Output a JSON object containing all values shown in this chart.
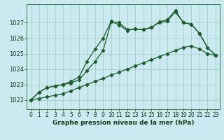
{
  "title": "Graphe pression niveau de la mer (hPa)",
  "bg_color": "#cce8f0",
  "grid_color": "#99ccbb",
  "line_color": "#1a5c2a",
  "x_ticks": [
    0,
    1,
    2,
    3,
    4,
    5,
    6,
    7,
    8,
    9,
    10,
    11,
    12,
    13,
    14,
    15,
    16,
    17,
    18,
    19,
    20,
    21,
    22,
    23
  ],
  "ylim": [
    1021.4,
    1028.2
  ],
  "yticks": [
    1022,
    1023,
    1024,
    1025,
    1026,
    1027
  ],
  "series": [
    [
      1022.0,
      1022.1,
      1022.2,
      1022.3,
      1022.4,
      1022.6,
      1022.8,
      1023.0,
      1023.2,
      1023.4,
      1023.6,
      1023.8,
      1024.0,
      1024.2,
      1024.4,
      1024.6,
      1024.8,
      1025.0,
      1025.2,
      1025.4,
      1025.5,
      1025.3,
      1025.0,
      1024.9
    ],
    [
      1022.0,
      1022.5,
      1022.8,
      1022.9,
      1023.0,
      1023.1,
      1023.3,
      1023.9,
      1024.5,
      1025.2,
      1027.05,
      1027.0,
      1026.55,
      1026.6,
      1026.55,
      1026.7,
      1027.0,
      1027.1,
      1027.7,
      1027.0,
      1026.9,
      1026.3,
      1025.4,
      1024.9
    ],
    [
      1022.0,
      1022.5,
      1022.8,
      1022.9,
      1023.0,
      1023.2,
      1023.5,
      1024.5,
      1025.3,
      1026.0,
      1027.1,
      1026.85,
      1026.5,
      1026.6,
      1026.55,
      1026.7,
      1027.05,
      1027.2,
      1027.8,
      1027.0,
      1026.9,
      1026.3,
      1025.4,
      1024.9
    ]
  ],
  "linestyles": [
    "-",
    "-",
    "-"
  ],
  "linewidths": [
    0.9,
    0.9,
    0.9
  ],
  "marker": "D",
  "markersize": 2.2,
  "tick_fontsize": 5.5,
  "ylabel_fontsize": 6.0,
  "xlabel_fontsize": 6.5
}
